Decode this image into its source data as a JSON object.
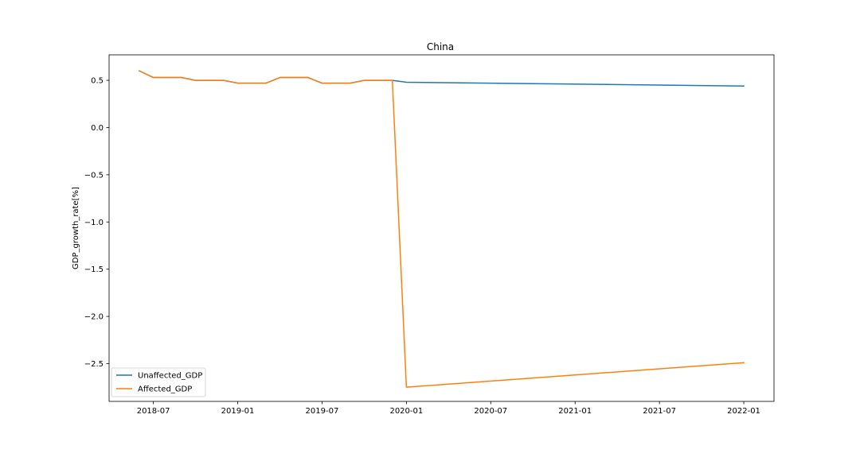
{
  "chart_data": {
    "type": "line",
    "title": "China",
    "xlabel": "",
    "ylabel": "GDP_growth_rate[%]",
    "x_ticks": [
      "2018-07",
      "2019-01",
      "2019-07",
      "2020-01",
      "2020-07",
      "2021-01",
      "2021-07",
      "2022-01"
    ],
    "y_ticks": [
      "0.5",
      "0.0",
      "−0.5",
      "−1.0",
      "−1.5",
      "−2.0",
      "−2.5"
    ],
    "ylim": [
      -2.9,
      0.77
    ],
    "grid": false,
    "legend_position": "lower-left",
    "series": [
      {
        "name": "Unaffected_GDP",
        "color": "#1f77b4",
        "x": [
          "2018-06",
          "2018-07",
          "2018-08",
          "2018-09",
          "2018-10",
          "2018-11",
          "2018-12",
          "2019-01",
          "2019-02",
          "2019-03",
          "2019-04",
          "2019-05",
          "2019-06",
          "2019-07",
          "2019-08",
          "2019-09",
          "2019-10",
          "2019-11",
          "2019-12",
          "2020-01",
          "2022-01"
        ],
        "values": [
          0.6,
          0.53,
          0.53,
          0.53,
          0.5,
          0.5,
          0.5,
          0.47,
          0.47,
          0.47,
          0.53,
          0.53,
          0.53,
          0.47,
          0.47,
          0.47,
          0.5,
          0.5,
          0.5,
          0.48,
          0.44
        ]
      },
      {
        "name": "Affected_GDP",
        "color": "#ff7f0e",
        "x": [
          "2018-06",
          "2018-07",
          "2018-08",
          "2018-09",
          "2018-10",
          "2018-11",
          "2018-12",
          "2019-01",
          "2019-02",
          "2019-03",
          "2019-04",
          "2019-05",
          "2019-06",
          "2019-07",
          "2019-08",
          "2019-09",
          "2019-10",
          "2019-11",
          "2019-12",
          "2020-01",
          "2022-01"
        ],
        "values": [
          0.6,
          0.53,
          0.53,
          0.53,
          0.5,
          0.5,
          0.5,
          0.47,
          0.47,
          0.47,
          0.53,
          0.53,
          0.53,
          0.47,
          0.47,
          0.47,
          0.5,
          0.5,
          0.5,
          -2.75,
          -2.49
        ]
      }
    ]
  }
}
